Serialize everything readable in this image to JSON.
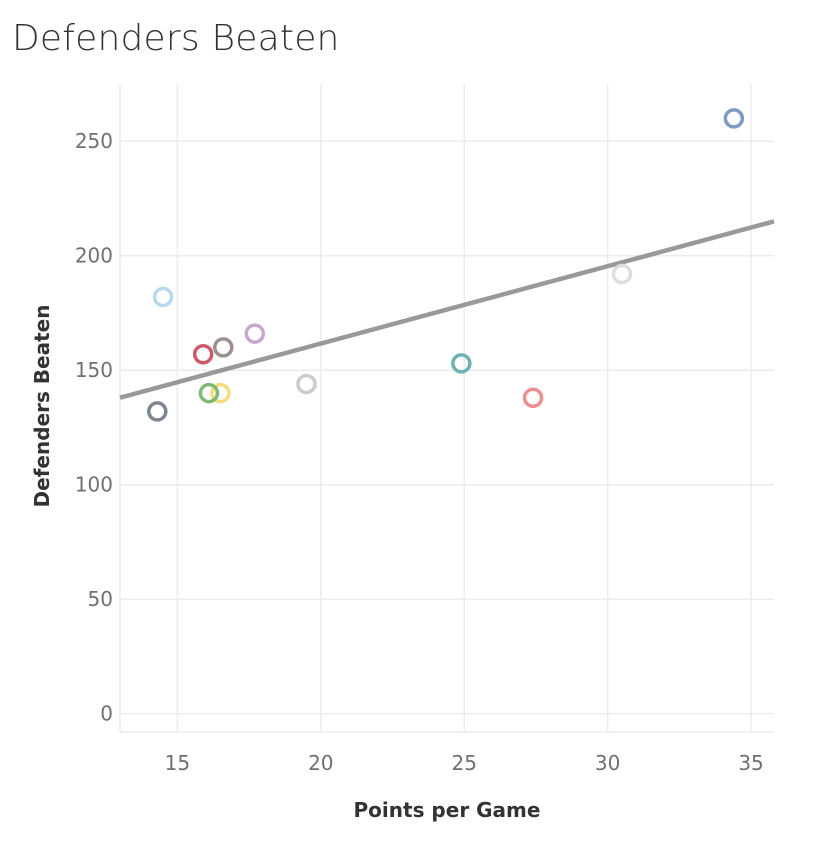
{
  "chart_data": {
    "type": "scatter",
    "title": "Defenders Beaten",
    "xlabel": "Points per Game",
    "ylabel": "Defenders Beaten",
    "xlim": [
      13,
      35.8
    ],
    "ylim": [
      -8,
      275
    ],
    "xticks": [
      15,
      20,
      25,
      30,
      35
    ],
    "yticks": [
      0,
      50,
      100,
      150,
      200,
      250
    ],
    "grid": true,
    "legend": "none",
    "points": [
      {
        "x": 34.4,
        "y": 260,
        "color": "#7f9ac4"
      },
      {
        "x": 30.5,
        "y": 192,
        "color": "#dddddd"
      },
      {
        "x": 14.5,
        "y": 182,
        "color": "#b6d9ee"
      },
      {
        "x": 17.7,
        "y": 166,
        "color": "#c8a6cf"
      },
      {
        "x": 16.6,
        "y": 160,
        "color": "#9a908c"
      },
      {
        "x": 15.9,
        "y": 157,
        "color": "#cc5b6a"
      },
      {
        "x": 24.9,
        "y": 153,
        "color": "#6fb3b0"
      },
      {
        "x": 19.5,
        "y": 144,
        "color": "#cccccc"
      },
      {
        "x": 16.5,
        "y": 140,
        "color": "#f6dc7e"
      },
      {
        "x": 16.1,
        "y": 140,
        "color": "#7fba74"
      },
      {
        "x": 27.4,
        "y": 138,
        "color": "#ec8f8f"
      },
      {
        "x": 14.3,
        "y": 132,
        "color": "#7d8591"
      }
    ],
    "trendline": {
      "start": {
        "x": 13,
        "y": 138
      },
      "end": {
        "x": 35.8,
        "y": 215
      },
      "color": "#999999"
    },
    "gridline_color": "#ececec"
  }
}
